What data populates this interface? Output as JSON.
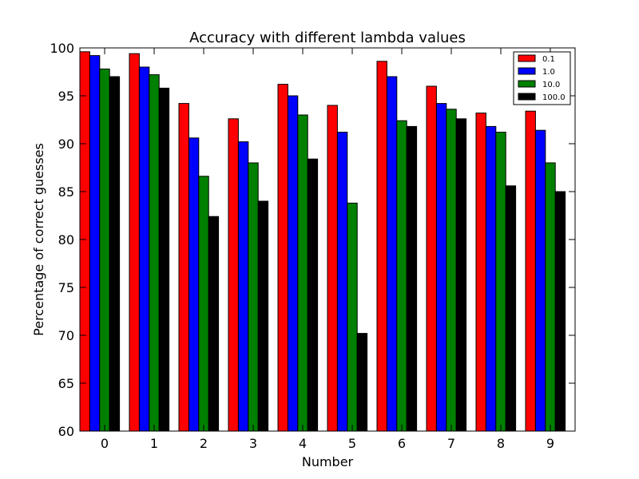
{
  "chart_data": {
    "type": "bar",
    "title": "Accuracy with different lambda values",
    "xlabel": "Number",
    "ylabel": "Percentage of correct guesses",
    "categories": [
      "0",
      "1",
      "2",
      "3",
      "4",
      "5",
      "6",
      "7",
      "8",
      "9"
    ],
    "ylim": [
      60,
      100
    ],
    "yticks": [
      "60",
      "65",
      "70",
      "75",
      "80",
      "85",
      "90",
      "95",
      "100"
    ],
    "legend_position": "top-right",
    "grid": false,
    "series": [
      {
        "name": "0.1",
        "color": "#ff0000",
        "values": [
          99.6,
          99.4,
          94.2,
          92.6,
          96.2,
          94.0,
          98.6,
          96.0,
          93.2,
          93.4
        ]
      },
      {
        "name": "1.0",
        "color": "#0000ff",
        "values": [
          99.2,
          98.0,
          90.6,
          90.2,
          95.0,
          91.2,
          97.0,
          94.2,
          91.8,
          91.4
        ]
      },
      {
        "name": "10.0",
        "color": "#008000",
        "values": [
          97.8,
          97.2,
          86.6,
          88.0,
          93.0,
          83.8,
          92.4,
          93.6,
          91.2,
          88.0
        ]
      },
      {
        "name": "100.0",
        "color": "#000000",
        "values": [
          97.0,
          95.8,
          82.4,
          84.0,
          88.4,
          70.2,
          91.8,
          92.6,
          85.6,
          85.0
        ]
      }
    ]
  }
}
